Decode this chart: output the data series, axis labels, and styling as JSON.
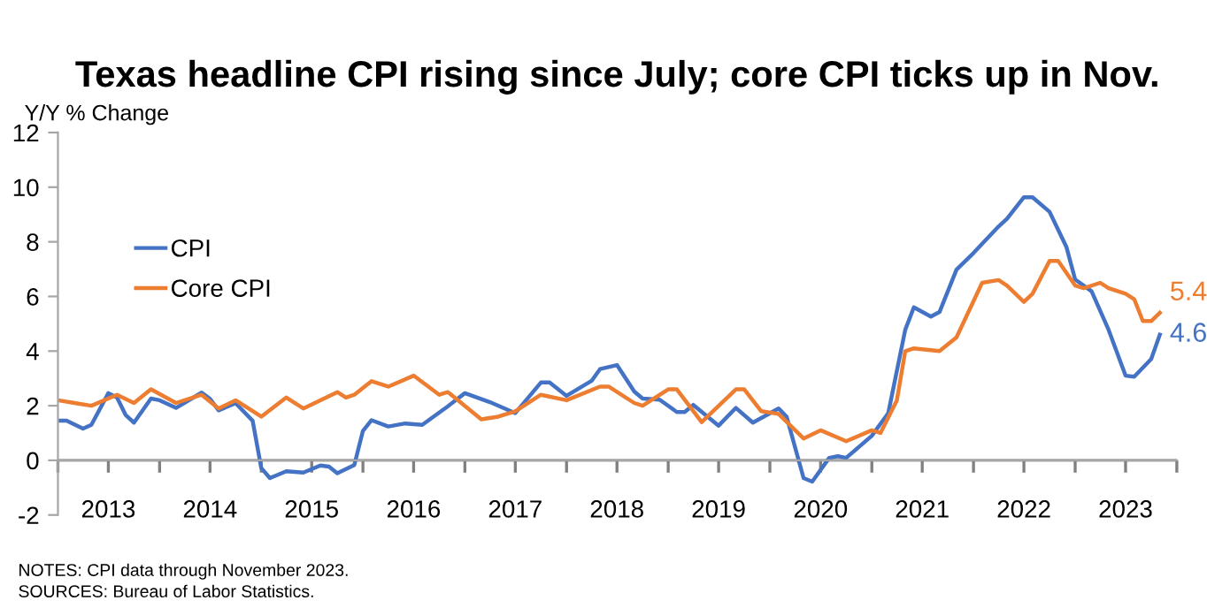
{
  "chart_data": {
    "type": "line",
    "title": "Texas headline CPI rising since July; core CPI ticks up in Nov.",
    "ylabel": "Y/Y % Change",
    "xlim": [
      "2013-01",
      "2024-01"
    ],
    "xticks": [
      {
        "value": "2013-01",
        "label": null
      },
      {
        "value": "2013-07",
        "label": "2013"
      },
      {
        "value": "2014-01",
        "label": null
      },
      {
        "value": "2014-07",
        "label": "2014"
      },
      {
        "value": "2015-01",
        "label": null
      },
      {
        "value": "2015-07",
        "label": "2015"
      },
      {
        "value": "2016-01",
        "label": null
      },
      {
        "value": "2016-07",
        "label": "2016"
      },
      {
        "value": "2017-01",
        "label": null
      },
      {
        "value": "2017-07",
        "label": "2017"
      },
      {
        "value": "2018-01",
        "label": null
      },
      {
        "value": "2018-07",
        "label": "2018"
      },
      {
        "value": "2019-01",
        "label": null
      },
      {
        "value": "2019-07",
        "label": "2019"
      },
      {
        "value": "2020-01",
        "label": null
      },
      {
        "value": "2020-07",
        "label": "2020"
      },
      {
        "value": "2021-01",
        "label": null
      },
      {
        "value": "2021-07",
        "label": "2021"
      },
      {
        "value": "2022-01",
        "label": null
      },
      {
        "value": "2022-07",
        "label": "2022"
      },
      {
        "value": "2023-01",
        "label": null
      },
      {
        "value": "2023-07",
        "label": "2023"
      },
      {
        "value": "2024-01",
        "label": null
      }
    ],
    "ylim": [
      -2,
      12
    ],
    "yticks": [
      -2,
      0,
      2,
      4,
      6,
      8,
      10,
      12
    ],
    "grid": false,
    "legend": "top left",
    "ref_lines": [
      {
        "axis": "y",
        "value": 0,
        "color": "#a6a6a6"
      }
    ],
    "series": [
      {
        "name": "CPI",
        "color": "#4472c4",
        "x": [
          "2013-01",
          "2013-02",
          "2013-04",
          "2013-05",
          "2013-07",
          "2013-08",
          "2013-09",
          "2013-10",
          "2013-12",
          "2014-01",
          "2014-03",
          "2014-06",
          "2014-07",
          "2014-08",
          "2014-10",
          "2014-12",
          "2015-01",
          "2015-02",
          "2015-04",
          "2015-06",
          "2015-08",
          "2015-09",
          "2015-10",
          "2015-12",
          "2016-01",
          "2016-02",
          "2016-04",
          "2016-06",
          "2016-08",
          "2016-11",
          "2017-01",
          "2017-04",
          "2017-07",
          "2017-10",
          "2017-11",
          "2018-01",
          "2018-04",
          "2018-05",
          "2018-07",
          "2018-09",
          "2018-10",
          "2018-12",
          "2019-02",
          "2019-03",
          "2019-04",
          "2019-07",
          "2019-09",
          "2019-11",
          "2020-02",
          "2020-03",
          "2020-05",
          "2020-06",
          "2020-08",
          "2020-09",
          "2020-10",
          "2021-01",
          "2021-03",
          "2021-05",
          "2021-06",
          "2021-08",
          "2021-09",
          "2021-11",
          "2022-01",
          "2022-04",
          "2022-05",
          "2022-07",
          "2022-08",
          "2022-10",
          "2022-12",
          "2023-01",
          "2023-03",
          "2023-05",
          "2023-07",
          "2023-08",
          "2023-10",
          "2023-11"
        ],
        "values": [
          1.45,
          1.45,
          1.16,
          1.3,
          2.46,
          2.3,
          1.66,
          1.38,
          2.26,
          2.2,
          1.92,
          2.48,
          2.25,
          1.83,
          2.09,
          1.45,
          -0.28,
          -0.65,
          -0.4,
          -0.45,
          -0.19,
          -0.23,
          -0.47,
          -0.17,
          1.08,
          1.47,
          1.24,
          1.35,
          1.3,
          1.98,
          2.46,
          2.13,
          1.73,
          2.85,
          2.85,
          2.36,
          2.91,
          3.34,
          3.49,
          2.52,
          2.26,
          2.22,
          1.77,
          1.77,
          2.03,
          1.27,
          1.92,
          1.38,
          1.9,
          1.6,
          -0.65,
          -0.78,
          0.09,
          0.15,
          0.09,
          0.9,
          1.73,
          4.78,
          5.6,
          5.26,
          5.43,
          6.98,
          7.59,
          8.56,
          8.84,
          9.63,
          9.63,
          9.1,
          7.8,
          6.62,
          6.19,
          4.78,
          3.1,
          3.06,
          3.71,
          4.6
        ]
      },
      {
        "name": "Core CPI",
        "color": "#ed7d31",
        "x": [
          "2013-01",
          "2013-03",
          "2013-05",
          "2013-08",
          "2013-10",
          "2013-12",
          "2014-03",
          "2014-06",
          "2014-08",
          "2014-10",
          "2015-01",
          "2015-04",
          "2015-06",
          "2015-10",
          "2015-11",
          "2015-12",
          "2016-02",
          "2016-04",
          "2016-07",
          "2016-10",
          "2016-11",
          "2017-03",
          "2017-05",
          "2017-07",
          "2017-10",
          "2018-01",
          "2018-05",
          "2018-06",
          "2018-09",
          "2018-10",
          "2019-01",
          "2019-02",
          "2019-05",
          "2019-09",
          "2019-10",
          "2019-12",
          "2020-02",
          "2020-05",
          "2020-07",
          "2020-10",
          "2021-01",
          "2021-02",
          "2021-04",
          "2021-05",
          "2021-06",
          "2021-09",
          "2021-11",
          "2022-02",
          "2022-04",
          "2022-05",
          "2022-07",
          "2022-08",
          "2022-10",
          "2022-11",
          "2023-01",
          "2023-02",
          "2023-04",
          "2023-05",
          "2023-07",
          "2023-08",
          "2023-09",
          "2023-10",
          "2023-11"
        ],
        "values": [
          2.2,
          2.1,
          2.0,
          2.4,
          2.1,
          2.6,
          2.1,
          2.4,
          1.9,
          2.2,
          1.6,
          2.3,
          1.9,
          2.5,
          2.3,
          2.4,
          2.9,
          2.7,
          3.1,
          2.4,
          2.5,
          1.5,
          1.6,
          1.8,
          2.4,
          2.2,
          2.7,
          2.7,
          2.1,
          2.0,
          2.6,
          2.6,
          1.4,
          2.6,
          2.6,
          1.8,
          1.7,
          0.8,
          1.1,
          0.7,
          1.1,
          1.0,
          2.2,
          4.0,
          4.1,
          4.0,
          4.5,
          6.5,
          6.6,
          6.4,
          5.8,
          6.1,
          7.3,
          7.3,
          6.4,
          6.3,
          6.5,
          6.3,
          6.1,
          5.9,
          5.1,
          5.1,
          5.4
        ]
      }
    ],
    "annotations": [
      {
        "text": "5.4",
        "x": "2023-11",
        "y": 5.4
      },
      {
        "text": "4.6",
        "x": "2023-11",
        "y": 4.6
      },
      "NOTES: CPI data through November 2023.",
      "SOURCES: Bureau of Labor Statistics."
    ]
  }
}
